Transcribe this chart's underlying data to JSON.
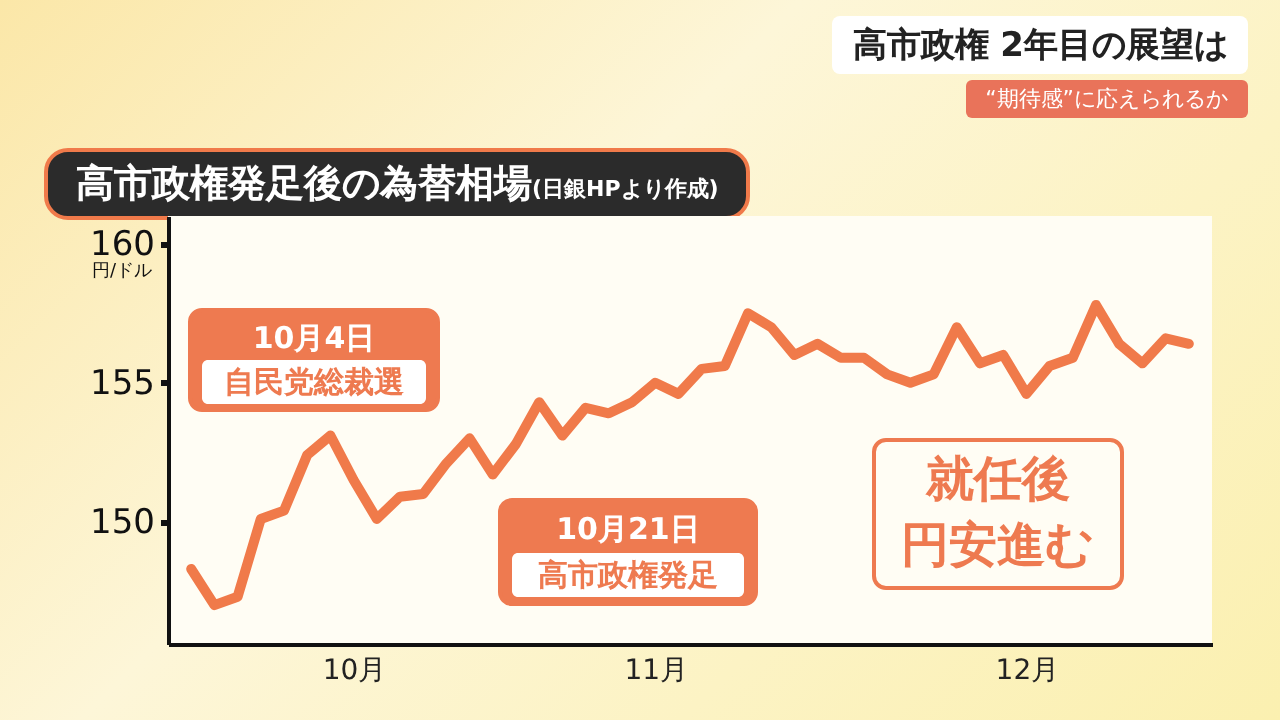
{
  "chart_data": {
    "type": "line",
    "title": "高市政権発足後の為替相場(日銀HPより作成)",
    "subtitle": "高市政権 2年目の展望は\n“期待感”に応えられるか",
    "ylabel": "円/ドル",
    "categories": [
      null,
      null,
      null,
      null,
      null,
      null,
      null,
      "10月",
      null,
      null,
      null,
      null,
      null,
      null,
      null,
      null,
      null,
      null,
      null,
      null,
      "11月",
      null,
      null,
      null,
      null,
      null,
      null,
      null,
      null,
      null,
      null,
      null,
      null,
      null,
      null,
      null,
      "12月",
      null,
      null,
      null,
      null,
      null,
      null,
      null
    ],
    "series": [
      {
        "color": "#f07a4a",
        "values": [
          148.3,
          147.0,
          147.3,
          150.1,
          150.4,
          152.4,
          153.1,
          151.5,
          150.1,
          150.9,
          151.0,
          152.1,
          153.0,
          151.7,
          152.8,
          154.3,
          153.1,
          154.1,
          153.9,
          154.3,
          155.0,
          154.6,
          155.5,
          155.6,
          157.5,
          157.0,
          156.0,
          156.4,
          155.9,
          155.9,
          155.3,
          155.0,
          155.3,
          157.0,
          155.7,
          156.0,
          154.6,
          155.6,
          155.9,
          157.8,
          156.4,
          155.7,
          156.6,
          156.4
        ]
      }
    ],
    "ylim": [
      145.6,
      161
    ],
    "yticks": [
      150,
      155,
      160
    ],
    "marker": "none",
    "line_style": "solid",
    "annotations": [
      "10月4日",
      "自民党総裁選",
      "10月21日",
      "高市政権発足",
      "就任後",
      "円安進む"
    ]
  }
}
